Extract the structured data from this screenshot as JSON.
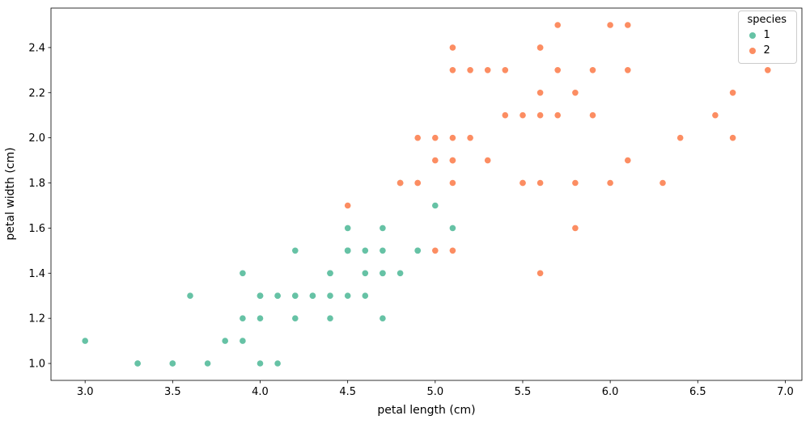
{
  "chart_data": {
    "type": "scatter",
    "title": "",
    "xlabel": "petal length (cm)",
    "ylabel": "petal width (cm)",
    "xlim": [
      2.805,
      7.095
    ],
    "ylim": [
      0.925,
      2.575
    ],
    "grid": false,
    "legend_title": "species",
    "legend_position": "upper right",
    "xticks": [
      {
        "v": 3.0,
        "label": "3.0"
      },
      {
        "v": 3.5,
        "label": "3.5"
      },
      {
        "v": 4.0,
        "label": "4.0"
      },
      {
        "v": 4.5,
        "label": "4.5"
      },
      {
        "v": 5.0,
        "label": "5.0"
      },
      {
        "v": 5.5,
        "label": "5.5"
      },
      {
        "v": 6.0,
        "label": "6.0"
      },
      {
        "v": 6.5,
        "label": "6.5"
      },
      {
        "v": 7.0,
        "label": "7.0"
      }
    ],
    "yticks": [
      {
        "v": 1.0,
        "label": "1.0"
      },
      {
        "v": 1.2,
        "label": "1.2"
      },
      {
        "v": 1.4,
        "label": "1.4"
      },
      {
        "v": 1.6,
        "label": "1.6"
      },
      {
        "v": 1.8,
        "label": "1.8"
      },
      {
        "v": 2.0,
        "label": "2.0"
      },
      {
        "v": 2.2,
        "label": "2.2"
      },
      {
        "v": 2.4,
        "label": "2.4"
      }
    ],
    "series": [
      {
        "name": "1",
        "color": "#66c2a5",
        "points": [
          [
            4.7,
            1.4
          ],
          [
            4.5,
            1.5
          ],
          [
            4.9,
            1.5
          ],
          [
            4.0,
            1.3
          ],
          [
            4.6,
            1.5
          ],
          [
            4.5,
            1.3
          ],
          [
            4.7,
            1.6
          ],
          [
            3.3,
            1.0
          ],
          [
            4.6,
            1.3
          ],
          [
            3.9,
            1.4
          ],
          [
            3.5,
            1.0
          ],
          [
            4.2,
            1.5
          ],
          [
            4.0,
            1.0
          ],
          [
            4.7,
            1.4
          ],
          [
            3.6,
            1.3
          ],
          [
            4.4,
            1.4
          ],
          [
            4.5,
            1.5
          ],
          [
            4.1,
            1.0
          ],
          [
            4.5,
            1.5
          ],
          [
            3.9,
            1.1
          ],
          [
            4.8,
            1.8
          ],
          [
            4.0,
            1.3
          ],
          [
            4.9,
            1.5
          ],
          [
            4.7,
            1.2
          ],
          [
            4.3,
            1.3
          ],
          [
            4.4,
            1.4
          ],
          [
            4.8,
            1.4
          ],
          [
            5.0,
            1.7
          ],
          [
            4.5,
            1.5
          ],
          [
            3.5,
            1.0
          ],
          [
            3.8,
            1.1
          ],
          [
            3.7,
            1.0
          ],
          [
            3.9,
            1.2
          ],
          [
            5.1,
            1.6
          ],
          [
            4.5,
            1.5
          ],
          [
            4.5,
            1.6
          ],
          [
            4.7,
            1.5
          ],
          [
            4.4,
            1.3
          ],
          [
            4.1,
            1.3
          ],
          [
            4.0,
            1.3
          ],
          [
            4.4,
            1.2
          ],
          [
            4.6,
            1.4
          ],
          [
            4.0,
            1.2
          ],
          [
            3.3,
            1.0
          ],
          [
            4.2,
            1.3
          ],
          [
            4.2,
            1.2
          ],
          [
            4.2,
            1.3
          ],
          [
            4.3,
            1.3
          ],
          [
            3.0,
            1.1
          ],
          [
            4.1,
            1.3
          ]
        ]
      },
      {
        "name": "2",
        "color": "#fc8d62",
        "points": [
          [
            6.0,
            2.5
          ],
          [
            5.1,
            1.9
          ],
          [
            5.9,
            2.1
          ],
          [
            5.6,
            1.8
          ],
          [
            5.8,
            2.2
          ],
          [
            6.6,
            2.1
          ],
          [
            4.5,
            1.7
          ],
          [
            6.3,
            1.8
          ],
          [
            5.8,
            1.8
          ],
          [
            6.1,
            2.5
          ],
          [
            5.1,
            2.0
          ],
          [
            5.3,
            1.9
          ],
          [
            5.5,
            2.1
          ],
          [
            5.0,
            2.0
          ],
          [
            5.1,
            2.4
          ],
          [
            5.3,
            2.3
          ],
          [
            5.5,
            1.8
          ],
          [
            6.7,
            2.2
          ],
          [
            6.9,
            2.3
          ],
          [
            5.0,
            1.5
          ],
          [
            5.7,
            2.3
          ],
          [
            4.9,
            2.0
          ],
          [
            6.7,
            2.0
          ],
          [
            4.9,
            1.8
          ],
          [
            5.7,
            2.1
          ],
          [
            6.0,
            1.8
          ],
          [
            4.8,
            1.8
          ],
          [
            4.9,
            1.8
          ],
          [
            5.6,
            2.1
          ],
          [
            5.8,
            1.6
          ],
          [
            6.1,
            1.9
          ],
          [
            6.4,
            2.0
          ],
          [
            5.6,
            2.2
          ],
          [
            5.1,
            1.5
          ],
          [
            5.6,
            1.4
          ],
          [
            6.1,
            2.3
          ],
          [
            5.6,
            2.4
          ],
          [
            5.5,
            1.8
          ],
          [
            4.8,
            1.8
          ],
          [
            5.4,
            2.1
          ],
          [
            5.6,
            2.4
          ],
          [
            5.1,
            2.3
          ],
          [
            5.1,
            1.9
          ],
          [
            5.9,
            2.3
          ],
          [
            5.7,
            2.5
          ],
          [
            5.2,
            2.3
          ],
          [
            5.0,
            1.9
          ],
          [
            5.2,
            2.0
          ],
          [
            5.4,
            2.3
          ],
          [
            5.1,
            1.8
          ]
        ]
      }
    ]
  }
}
